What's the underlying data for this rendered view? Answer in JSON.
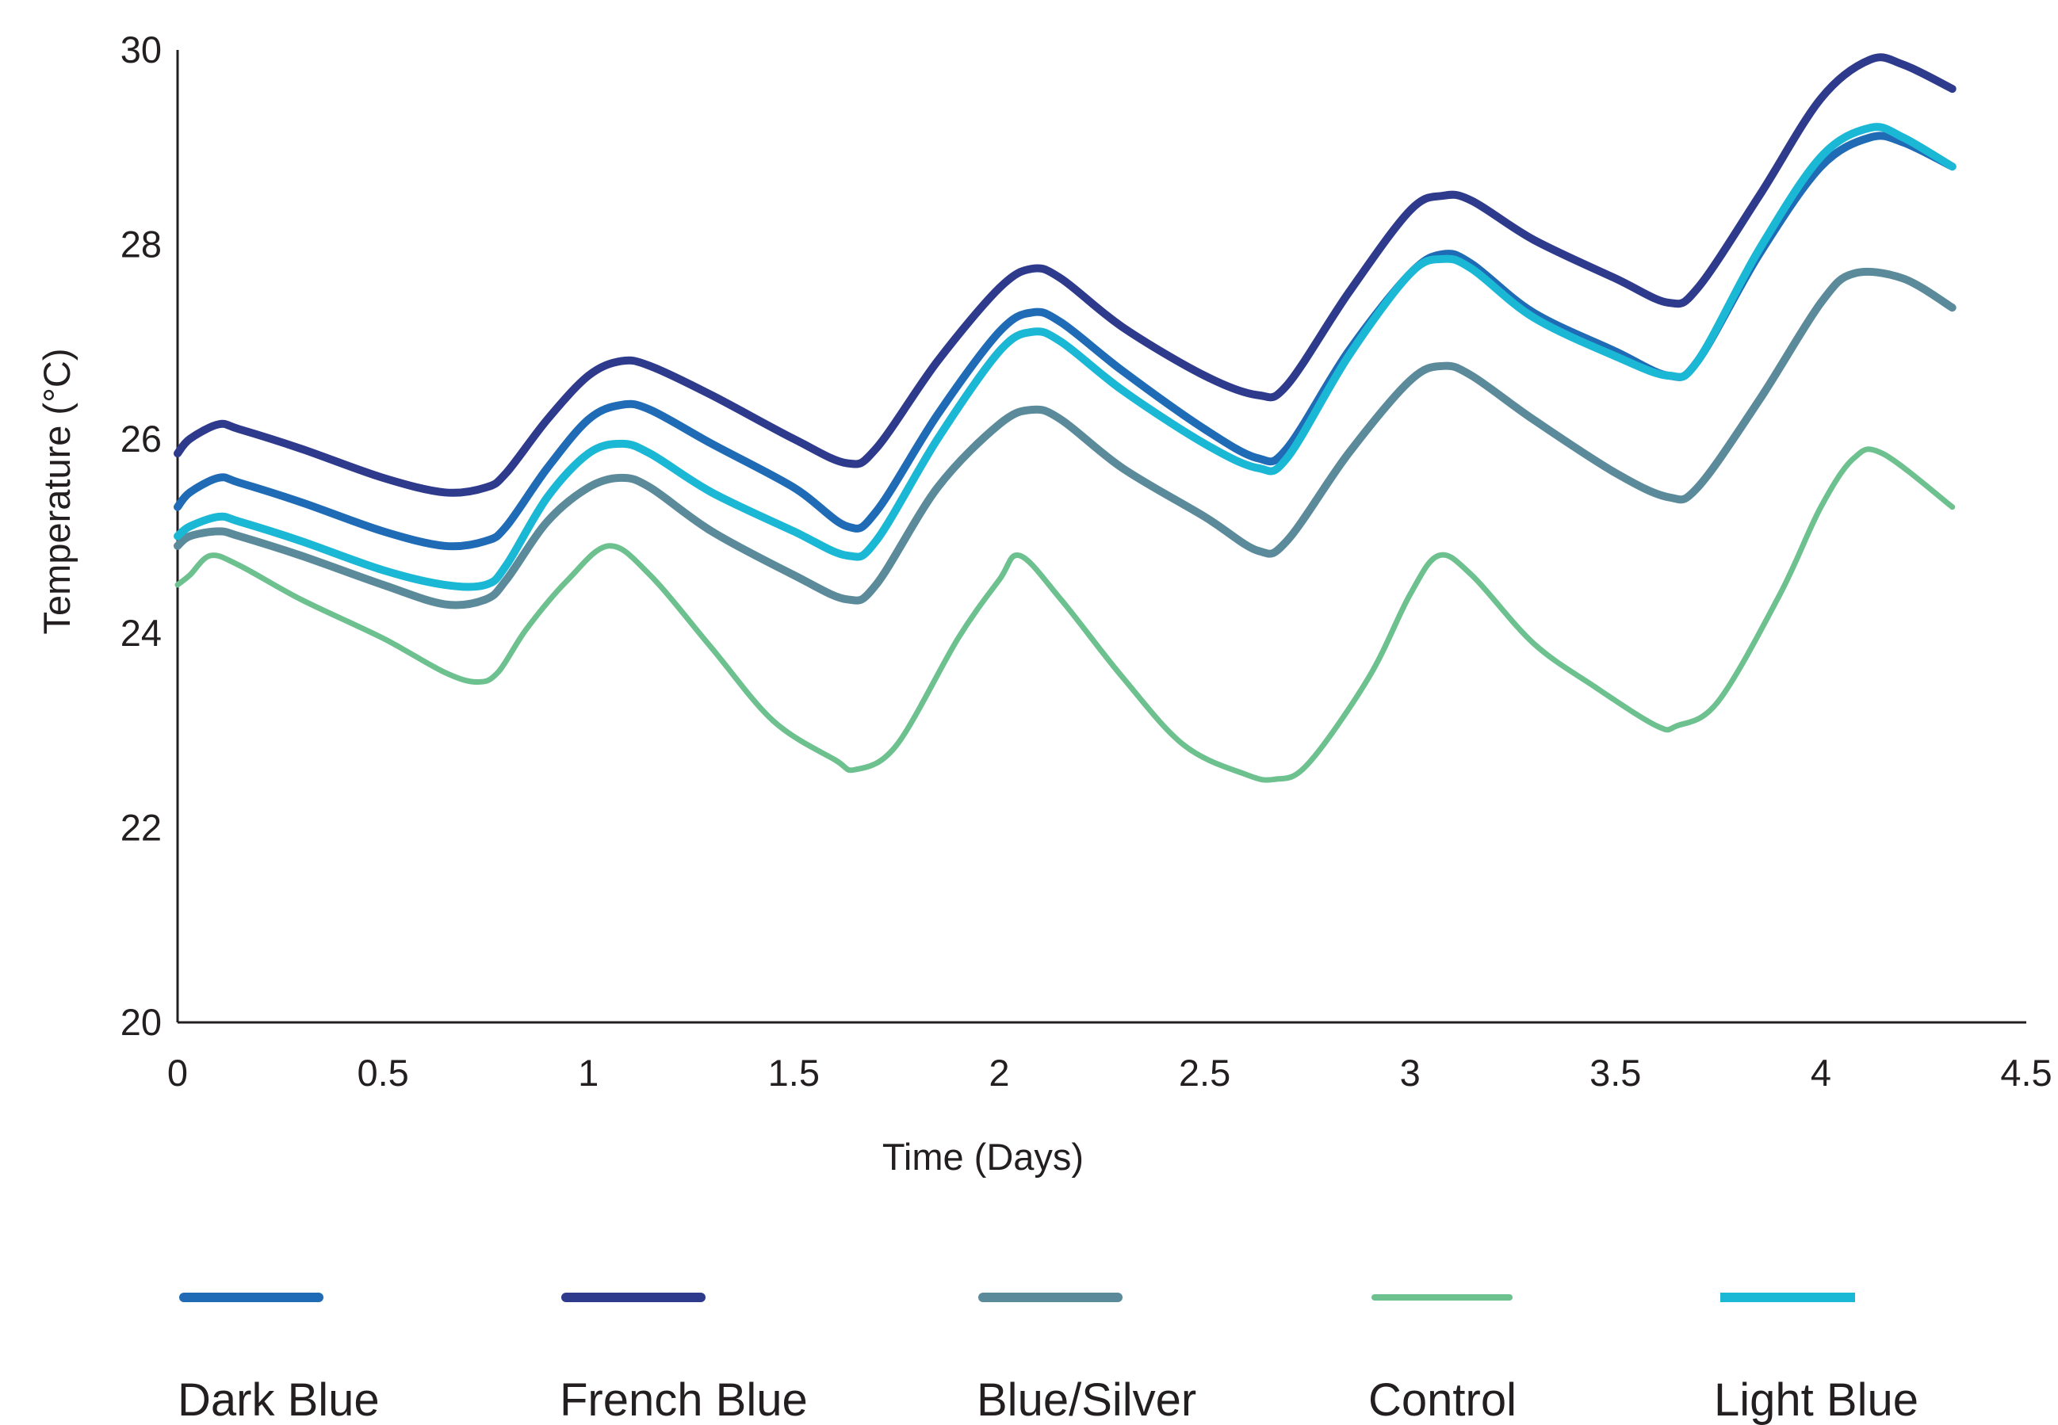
{
  "chart_data": {
    "type": "line",
    "title": "",
    "xlabel": "Time (Days)",
    "ylabel": "Temperature (°C)",
    "xlim": [
      0,
      4.5
    ],
    "ylim": [
      20,
      30
    ],
    "x_ticks": [
      "0",
      "0.5",
      "1",
      "1.5",
      "2",
      "2.5",
      "3",
      "3.5",
      "4",
      "4.5"
    ],
    "y_ticks": [
      "20",
      "22",
      "24",
      "26",
      "28",
      "30"
    ],
    "grid": false,
    "legend_position": "bottom",
    "series": [
      {
        "name": "Dark Blue",
        "color": "#1f6bb5",
        "x": [
          0,
          0.03,
          0.1,
          0.15,
          0.3,
          0.5,
          0.65,
          0.75,
          0.8,
          0.9,
          1.0,
          1.08,
          1.15,
          1.3,
          1.5,
          1.63,
          1.7,
          1.85,
          2.0,
          2.08,
          2.15,
          2.3,
          2.5,
          2.63,
          2.7,
          2.85,
          3.0,
          3.08,
          3.15,
          3.3,
          3.5,
          3.63,
          3.7,
          3.85,
          4.0,
          4.12,
          4.2,
          4.32
        ],
        "y": [
          25.3,
          25.45,
          25.6,
          25.55,
          25.35,
          25.05,
          24.9,
          24.95,
          25.1,
          25.7,
          26.2,
          26.35,
          26.3,
          25.95,
          25.5,
          25.1,
          25.25,
          26.25,
          27.1,
          27.3,
          27.2,
          26.7,
          26.1,
          25.8,
          25.9,
          26.9,
          27.7,
          27.9,
          27.8,
          27.3,
          26.9,
          26.65,
          26.8,
          27.9,
          28.8,
          29.1,
          29.05,
          28.8
        ]
      },
      {
        "name": "French Blue",
        "color": "#2e3a8c",
        "x": [
          0,
          0.03,
          0.1,
          0.15,
          0.3,
          0.5,
          0.65,
          0.75,
          0.8,
          0.9,
          1.0,
          1.08,
          1.15,
          1.3,
          1.5,
          1.63,
          1.7,
          1.85,
          2.0,
          2.08,
          2.15,
          2.3,
          2.5,
          2.63,
          2.7,
          2.85,
          3.0,
          3.08,
          3.15,
          3.3,
          3.5,
          3.63,
          3.7,
          3.85,
          4.0,
          4.12,
          4.2,
          4.32
        ],
        "y": [
          25.85,
          26.0,
          26.15,
          26.1,
          25.9,
          25.6,
          25.45,
          25.5,
          25.65,
          26.2,
          26.65,
          26.8,
          26.75,
          26.45,
          26.0,
          25.75,
          25.9,
          26.8,
          27.55,
          27.75,
          27.65,
          27.15,
          26.65,
          26.45,
          26.55,
          27.5,
          28.35,
          28.5,
          28.45,
          28.05,
          27.65,
          27.4,
          27.55,
          28.5,
          29.5,
          29.9,
          29.85,
          29.6
        ]
      },
      {
        "name": "Blue/Silver",
        "color": "#5b8a9a",
        "x": [
          0,
          0.03,
          0.1,
          0.15,
          0.3,
          0.5,
          0.65,
          0.75,
          0.8,
          0.9,
          1.0,
          1.08,
          1.15,
          1.3,
          1.5,
          1.63,
          1.7,
          1.85,
          2.0,
          2.08,
          2.15,
          2.3,
          2.5,
          2.63,
          2.7,
          2.85,
          3.0,
          3.08,
          3.15,
          3.3,
          3.5,
          3.63,
          3.7,
          3.85,
          4.0,
          4.08,
          4.2,
          4.32
        ],
        "y": [
          24.9,
          25.0,
          25.05,
          25.0,
          24.8,
          24.5,
          24.3,
          24.35,
          24.55,
          25.15,
          25.5,
          25.6,
          25.5,
          25.05,
          24.6,
          24.35,
          24.5,
          25.5,
          26.15,
          26.3,
          26.2,
          25.7,
          25.2,
          24.85,
          24.95,
          25.85,
          26.6,
          26.75,
          26.65,
          26.2,
          25.65,
          25.4,
          25.5,
          26.4,
          27.4,
          27.7,
          27.65,
          27.35
        ]
      },
      {
        "name": "Control",
        "color": "#6dc18f",
        "x": [
          0,
          0.03,
          0.08,
          0.15,
          0.3,
          0.5,
          0.65,
          0.73,
          0.78,
          0.85,
          0.95,
          1.05,
          1.15,
          1.3,
          1.45,
          1.6,
          1.65,
          1.75,
          1.9,
          2.0,
          2.05,
          2.15,
          2.3,
          2.45,
          2.6,
          2.67,
          2.75,
          2.9,
          3.0,
          3.07,
          3.15,
          3.3,
          3.45,
          3.6,
          3.65,
          3.75,
          3.9,
          4.0,
          4.08,
          4.15,
          4.32
        ],
        "y": [
          24.5,
          24.6,
          24.8,
          24.7,
          24.35,
          23.95,
          23.6,
          23.5,
          23.6,
          24.05,
          24.55,
          24.9,
          24.6,
          23.85,
          23.1,
          22.7,
          22.6,
          22.85,
          23.95,
          24.55,
          24.8,
          24.35,
          23.55,
          22.85,
          22.55,
          22.5,
          22.65,
          23.55,
          24.4,
          24.8,
          24.6,
          23.9,
          23.45,
          23.05,
          23.05,
          23.3,
          24.4,
          25.3,
          25.8,
          25.85,
          25.3
        ]
      },
      {
        "name": "Light Blue",
        "color": "#1bb8d6",
        "x": [
          0,
          0.03,
          0.1,
          0.15,
          0.3,
          0.5,
          0.65,
          0.75,
          0.8,
          0.9,
          1.0,
          1.08,
          1.15,
          1.3,
          1.5,
          1.63,
          1.7,
          1.85,
          2.0,
          2.08,
          2.15,
          2.3,
          2.5,
          2.63,
          2.7,
          2.85,
          3.0,
          3.08,
          3.15,
          3.3,
          3.5,
          3.63,
          3.7,
          3.85,
          4.0,
          4.12,
          4.2,
          4.32
        ],
        "y": [
          25.0,
          25.1,
          25.2,
          25.15,
          24.95,
          24.65,
          24.5,
          24.5,
          24.7,
          25.4,
          25.85,
          25.95,
          25.85,
          25.45,
          25.05,
          24.8,
          24.95,
          26.0,
          26.9,
          27.1,
          27.0,
          26.5,
          25.95,
          25.7,
          25.8,
          26.85,
          27.7,
          27.85,
          27.75,
          27.25,
          26.85,
          26.65,
          26.8,
          27.95,
          28.9,
          29.2,
          29.1,
          28.8
        ]
      }
    ]
  }
}
